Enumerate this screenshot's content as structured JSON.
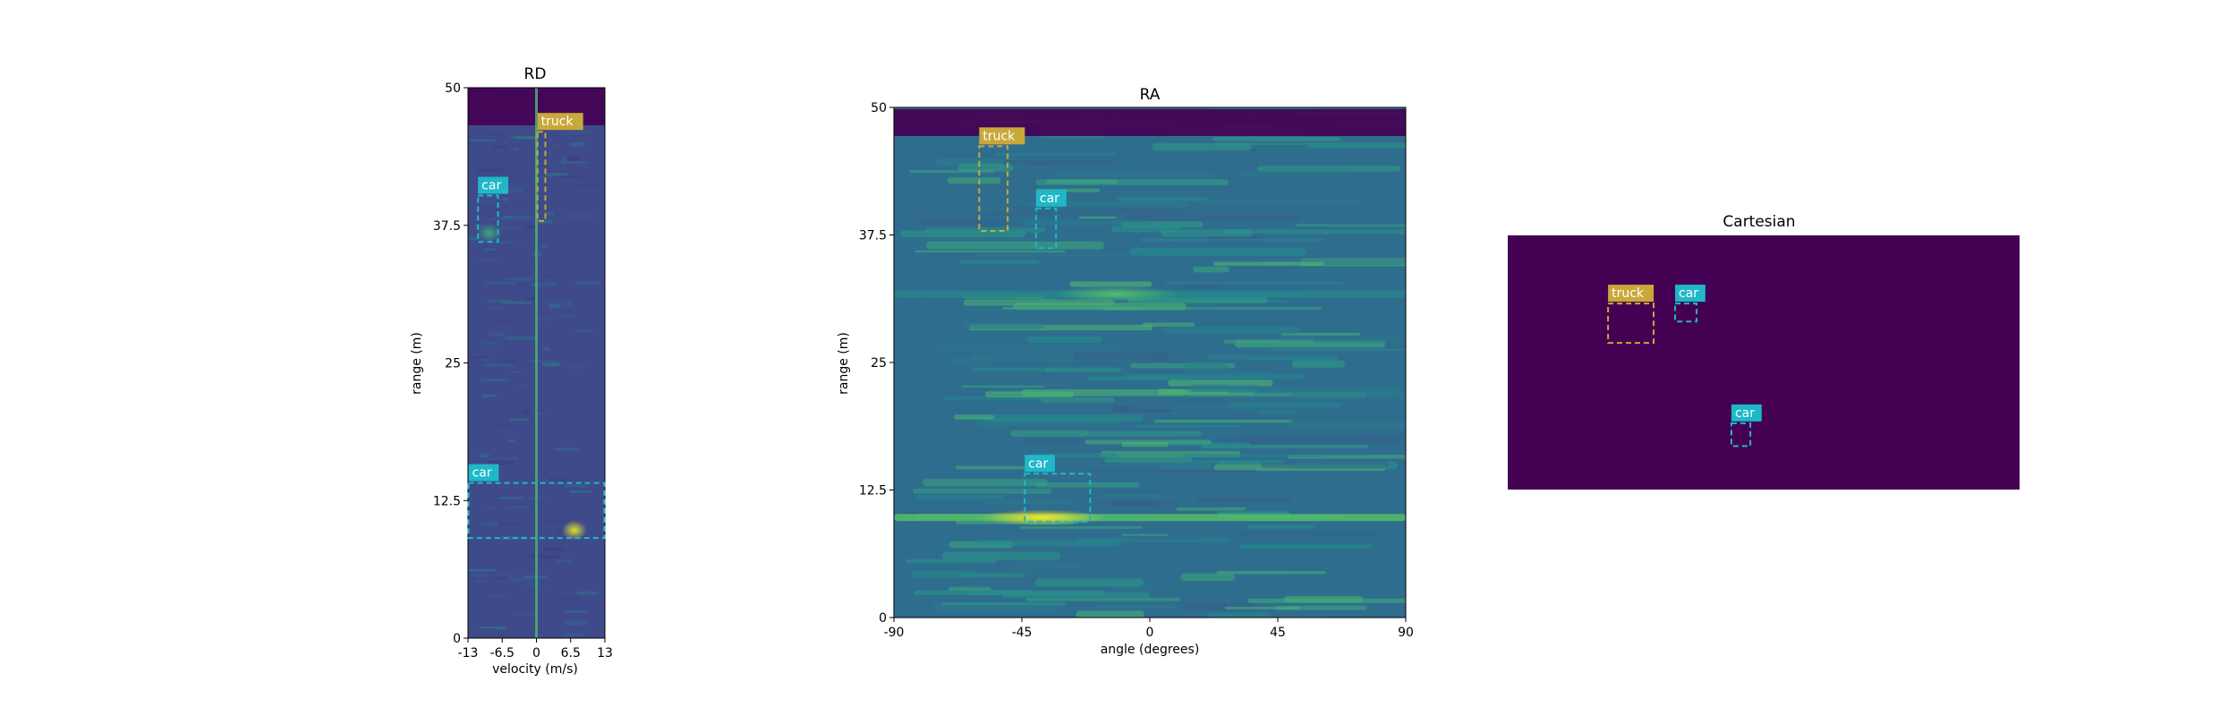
{
  "chart_data": [
    {
      "type": "heatmap",
      "title": "RD",
      "xlabel": "velocity (m/s)",
      "ylabel": "range (m)",
      "xlim": [
        -13,
        13
      ],
      "ylim": [
        0,
        50
      ],
      "xticks": [
        "-13",
        "-6.5",
        "0",
        "6.5",
        "13"
      ],
      "xtick_values": [
        -13,
        -6.5,
        0,
        6.5,
        13
      ],
      "yticks": [
        "0",
        "12.5",
        "25",
        "37.5",
        "50"
      ],
      "ytick_values": [
        0,
        12.5,
        25,
        37.5,
        50
      ],
      "colormap": "viridis",
      "bright_features": [
        {
          "type": "vline",
          "x": 0,
          "intensity": 0.45
        },
        {
          "type": "blob",
          "x": 7.2,
          "y": 9.8,
          "intensity": 0.95
        },
        {
          "type": "blob",
          "x": -9.0,
          "y": 36.8,
          "intensity": 0.6
        }
      ],
      "detections": [
        {
          "label": "truck",
          "x0": 0.2,
          "x1": 1.7,
          "y0": 37.9,
          "y1": 46.0,
          "color": "#c8a83a"
        },
        {
          "label": "car",
          "x0": -11.1,
          "x1": -7.3,
          "y0": 36.0,
          "y1": 40.2,
          "color": "#1fb8c8"
        },
        {
          "label": "car",
          "x0": -12.9,
          "x1": 12.9,
          "y0": 9.1,
          "y1": 14.1,
          "color": "#1fb8c8"
        }
      ]
    },
    {
      "type": "heatmap",
      "title": "RA",
      "xlabel": "angle (degrees)",
      "ylabel": "range (m)",
      "xlim": [
        -90,
        90
      ],
      "ylim": [
        0,
        50
      ],
      "xticks": [
        "-90",
        "-45",
        "0",
        "45",
        "90"
      ],
      "xtick_values": [
        -90,
        -45,
        0,
        45,
        90
      ],
      "yticks": [
        "0",
        "12.5",
        "25",
        "37.5",
        "50"
      ],
      "ytick_values": [
        0,
        12.5,
        25,
        37.5,
        50
      ],
      "colormap": "viridis",
      "bright_features": [
        {
          "type": "hband",
          "y": 9.8,
          "intensity": 0.7
        },
        {
          "type": "hband",
          "y": 31.7,
          "intensity": 0.45
        },
        {
          "type": "blob",
          "x": -38,
          "y": 9.8,
          "intensity": 1.0
        },
        {
          "type": "blob",
          "x": -12,
          "y": 31.7,
          "intensity": 0.7
        }
      ],
      "detections": [
        {
          "label": "truck",
          "x0": -60,
          "x1": -50,
          "y0": 37.9,
          "y1": 46.2,
          "color": "#c8a83a"
        },
        {
          "label": "car",
          "x0": -40,
          "x1": -33,
          "y0": 36.2,
          "y1": 40.1,
          "color": "#1fb8c8"
        },
        {
          "label": "car",
          "x0": -44,
          "x1": -21,
          "y0": 9.4,
          "y1": 14.1,
          "color": "#1fb8c8"
        }
      ]
    },
    {
      "type": "heatmap",
      "title": "Cartesian",
      "xlabel": "",
      "ylabel": "",
      "background_color": "#440154",
      "detections": [
        {
          "label": "truck",
          "fx0": 0.196,
          "fx1": 0.285,
          "fy0": 0.268,
          "fy1": 0.423,
          "color": "#c8a83a"
        },
        {
          "label": "car",
          "fx0": 0.327,
          "fx1": 0.369,
          "fy0": 0.268,
          "fy1": 0.339,
          "color": "#1fb8c8"
        },
        {
          "label": "car",
          "fx0": 0.437,
          "fx1": 0.474,
          "fy0": 0.739,
          "fy1": 0.829,
          "color": "#1fb8c8"
        }
      ]
    }
  ]
}
